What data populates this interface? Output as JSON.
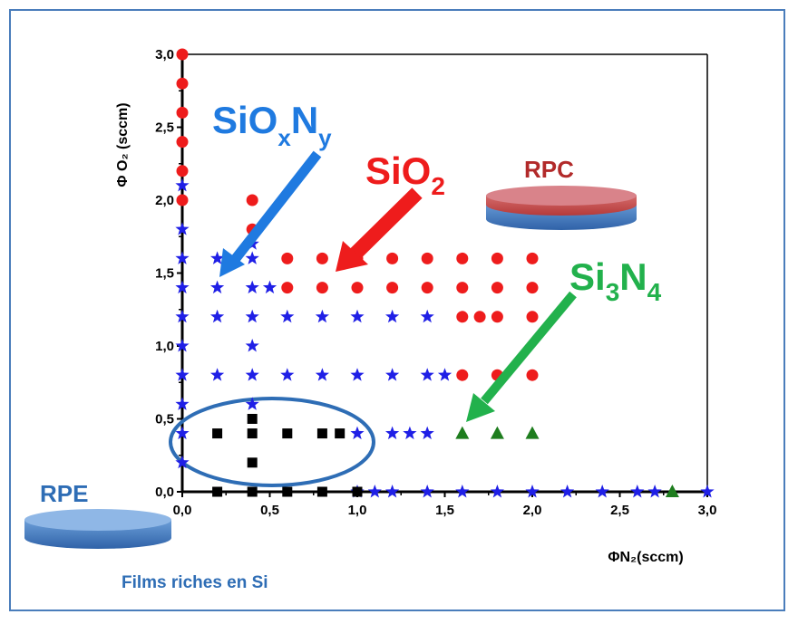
{
  "chart_data": {
    "type": "scatter",
    "title": "",
    "xlabel": "ΦN₂(sccm)",
    "ylabel": "Φ O₂ (sccm)",
    "xlim": [
      0,
      3
    ],
    "ylim": [
      0,
      3
    ],
    "xticks": [
      "0,0",
      "0,5",
      "1,0",
      "1,5",
      "2,0",
      "2,5",
      "3,0"
    ],
    "yticks": [
      "0,0",
      "0,5",
      "1,0",
      "1,5",
      "2,0",
      "2,5",
      "3,0"
    ],
    "grid": false,
    "series": [
      {
        "name": "SiO2",
        "marker": "circle",
        "color": "#ee1c1c",
        "points": [
          [
            0,
            3.0
          ],
          [
            0,
            2.8
          ],
          [
            0,
            2.6
          ],
          [
            0,
            2.4
          ],
          [
            0,
            2.2
          ],
          [
            0,
            2.0
          ],
          [
            0.4,
            2.0
          ],
          [
            0.4,
            1.8
          ],
          [
            0.6,
            1.6
          ],
          [
            0.8,
            1.6
          ],
          [
            1.0,
            1.6
          ],
          [
            1.2,
            1.6
          ],
          [
            1.4,
            1.6
          ],
          [
            1.6,
            1.6
          ],
          [
            1.8,
            1.6
          ],
          [
            2.0,
            1.6
          ],
          [
            0.6,
            1.4
          ],
          [
            0.8,
            1.4
          ],
          [
            1.0,
            1.4
          ],
          [
            1.2,
            1.4
          ],
          [
            1.4,
            1.4
          ],
          [
            1.6,
            1.4
          ],
          [
            1.8,
            1.4
          ],
          [
            2.0,
            1.4
          ],
          [
            1.6,
            1.2
          ],
          [
            1.7,
            1.2
          ],
          [
            1.8,
            1.2
          ],
          [
            2.0,
            1.2
          ],
          [
            1.6,
            0.8
          ],
          [
            1.8,
            0.8
          ],
          [
            2.0,
            0.8
          ]
        ]
      },
      {
        "name": "SiOxNy",
        "marker": "star",
        "color": "#1f1fe6",
        "points": [
          [
            0,
            2.1
          ],
          [
            0,
            1.8
          ],
          [
            0,
            1.6
          ],
          [
            0,
            1.4
          ],
          [
            0,
            1.2
          ],
          [
            0,
            1.0
          ],
          [
            0,
            0.8
          ],
          [
            0,
            0.6
          ],
          [
            0,
            0.4
          ],
          [
            0,
            0.2
          ],
          [
            0.4,
            1.7
          ],
          [
            0.2,
            1.6
          ],
          [
            0.4,
            1.6
          ],
          [
            0.2,
            1.4
          ],
          [
            0.4,
            1.4
          ],
          [
            0.5,
            1.4
          ],
          [
            0.2,
            1.2
          ],
          [
            0.4,
            1.2
          ],
          [
            0.6,
            1.2
          ],
          [
            0.8,
            1.2
          ],
          [
            1.0,
            1.2
          ],
          [
            1.2,
            1.2
          ],
          [
            1.4,
            1.2
          ],
          [
            0.4,
            1.0
          ],
          [
            0.2,
            0.8
          ],
          [
            0.4,
            0.8
          ],
          [
            0.6,
            0.8
          ],
          [
            0.8,
            0.8
          ],
          [
            1.0,
            0.8
          ],
          [
            1.2,
            0.8
          ],
          [
            1.4,
            0.8
          ],
          [
            1.5,
            0.8
          ],
          [
            0.4,
            0.6
          ],
          [
            1.0,
            0.4
          ],
          [
            1.2,
            0.4
          ],
          [
            1.3,
            0.4
          ],
          [
            1.4,
            0.4
          ],
          [
            1.0,
            0
          ],
          [
            1.1,
            0
          ],
          [
            1.2,
            0
          ],
          [
            1.4,
            0
          ],
          [
            1.6,
            0
          ],
          [
            1.8,
            0
          ],
          [
            2.0,
            0
          ],
          [
            2.2,
            0
          ],
          [
            2.4,
            0
          ],
          [
            2.6,
            0
          ],
          [
            2.7,
            0
          ],
          [
            3.0,
            0
          ]
        ]
      },
      {
        "name": "Si3N4",
        "marker": "triangle",
        "color": "#1e7d1e",
        "points": [
          [
            1.6,
            0.4
          ],
          [
            1.8,
            0.4
          ],
          [
            2.0,
            0.4
          ],
          [
            2.8,
            0
          ]
        ]
      },
      {
        "name": "Films riches en Si",
        "marker": "square",
        "color": "#000000",
        "points": [
          [
            0.2,
            0.4
          ],
          [
            0.4,
            0.5
          ],
          [
            0.4,
            0.4
          ],
          [
            0.4,
            0.2
          ],
          [
            0.6,
            0.4
          ],
          [
            0.8,
            0.4
          ],
          [
            0.9,
            0.4
          ],
          [
            0.2,
            0
          ],
          [
            0.4,
            0
          ],
          [
            0.6,
            0
          ],
          [
            0.8,
            0
          ],
          [
            1.0,
            0
          ]
        ]
      }
    ],
    "annotations": {
      "sioxny": "SiO",
      "sioxny_sub_x": "x",
      "sioxny_n": "N",
      "sioxny_sub_y": "y",
      "sio2": "SiO",
      "sio2_sub": "2",
      "si3n4_si": "Si",
      "si3n4_sub3": "3",
      "si3n4_n": "N",
      "si3n4_sub4": "4",
      "rpc": "RPC",
      "rpe": "RPE",
      "films": "Films riches en Si"
    },
    "colors": {
      "frame": "#4a7dbb",
      "sioxny_label": "#1f7ae0",
      "sio2_label": "#ee1c1c",
      "si3n4_label": "#22b14c",
      "rpc_label": "#b22a2a",
      "rpe_label": "#2e6db5",
      "ellipse": "#2e6db5"
    }
  }
}
